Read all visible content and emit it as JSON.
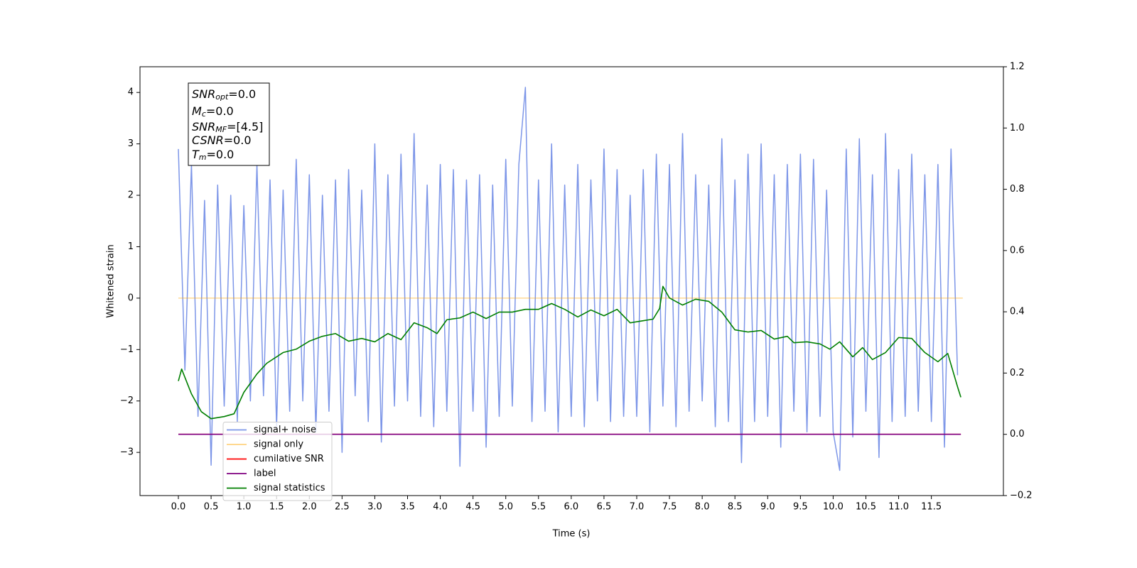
{
  "chart_data": {
    "type": "line",
    "xlabel": "Time (s)",
    "ylabel": "Whitened strain",
    "xlim": [
      -0.586,
      12.6
    ],
    "ylim": [
      -3.84,
      4.5
    ],
    "y2lim": [
      -0.2,
      1.2
    ],
    "xticks": [
      {
        "value": 0,
        "label": "0.0"
      },
      0.5,
      {
        "value": 1,
        "label": "1.0"
      },
      1.5,
      {
        "value": 2,
        "label": "2.0"
      },
      2.5,
      {
        "value": 3,
        "label": "3.0"
      },
      3.5,
      {
        "value": 4,
        "label": "4.0"
      },
      4.5,
      {
        "value": 5,
        "label": "5.0"
      },
      5.5,
      {
        "value": 6,
        "label": "6.0"
      },
      6.5,
      {
        "value": 7,
        "label": "7.0"
      },
      7.5,
      {
        "value": 8,
        "label": "8.0"
      },
      8.5,
      {
        "value": 9,
        "label": "9.0"
      },
      9.5,
      {
        "value": 10,
        "label": "10.0"
      },
      10.5,
      {
        "value": 11,
        "label": "11.0"
      },
      11.5
    ],
    "yticks": [
      {
        "value": -3,
        "label": "−3"
      },
      {
        "value": -2,
        "label": "−2"
      },
      {
        "value": -1,
        "label": "−1"
      },
      0,
      1,
      2,
      3,
      4
    ],
    "y2ticks": [
      {
        "value": -0.2,
        "label": "−0.2"
      },
      {
        "value": 0,
        "label": "0.0"
      },
      0.2,
      0.4,
      0.6,
      0.8,
      {
        "value": 1,
        "label": "1.0"
      },
      1.2
    ],
    "legend_loc": "lower left",
    "annotation_box": [
      {
        "symbol": "SNR",
        "subscript": "opt",
        "text": "=0.0"
      },
      {
        "symbol": "M",
        "subscript": "c",
        "text": "=0.0"
      },
      {
        "symbol": "SNR",
        "subscript": "MF",
        "text": "=[4.5]"
      },
      {
        "symbol": "CSNR",
        "text": "=0.0"
      },
      {
        "symbol": "T",
        "subscript": "m",
        "text": "=0.0"
      }
    ],
    "series": [
      {
        "name": "signal+ noise",
        "color": "#6f8be6",
        "x": [
          0,
          0.1,
          0.2,
          0.3,
          0.4,
          0.5,
          0.6,
          0.7,
          0.8,
          0.9,
          1,
          1.1,
          1.2,
          1.3,
          1.4,
          1.5,
          1.6,
          1.7,
          1.8,
          1.9,
          2,
          2.1,
          2.2,
          2.3,
          2.4,
          2.5,
          2.6,
          2.7,
          2.8,
          2.9,
          3,
          3.1,
          3.2,
          3.3,
          3.4,
          3.5,
          3.6,
          3.7,
          3.8,
          3.9,
          4,
          4.1,
          4.2,
          4.3,
          4.4,
          4.5,
          4.6,
          4.7,
          4.8,
          4.9,
          5,
          5.1,
          5.2,
          5.3,
          5.4,
          5.5,
          5.6,
          5.7,
          5.8,
          5.9,
          6,
          6.1,
          6.2,
          6.3,
          6.4,
          6.5,
          6.6,
          6.7,
          6.8,
          6.9,
          7,
          7.1,
          7.2,
          7.3,
          7.4,
          7.5,
          7.6,
          7.7,
          7.8,
          7.9,
          8,
          8.1,
          8.2,
          8.3,
          8.4,
          8.5,
          8.6,
          8.7,
          8.8,
          8.9,
          9,
          9.1,
          9.2,
          9.3,
          9.4,
          9.5,
          9.6,
          9.7,
          9.8,
          9.9,
          10,
          10.1,
          10.2,
          10.3,
          10.4,
          10.5,
          10.6,
          10.7,
          10.8,
          10.9,
          11,
          11.1,
          11.2,
          11.3,
          11.4,
          11.5,
          11.6,
          11.7,
          11.8,
          11.9
        ],
        "values": [
          2.9,
          -1.4,
          2.6,
          -2.3,
          1.9,
          -3.25,
          2.2,
          -2.1,
          2.0,
          -2.4,
          1.8,
          -2.0,
          2.6,
          -1.9,
          2.3,
          -2.5,
          2.1,
          -2.2,
          2.7,
          -2.0,
          2.4,
          -2.6,
          2.0,
          -2.2,
          2.3,
          -3.0,
          2.5,
          -1.9,
          2.1,
          -2.4,
          3.0,
          -2.8,
          2.4,
          -2.1,
          2.8,
          -2.0,
          3.2,
          -2.3,
          2.2,
          -2.5,
          2.6,
          -2.2,
          2.5,
          -3.27,
          2.3,
          -2.2,
          2.4,
          -2.9,
          2.2,
          -2.3,
          2.7,
          -2.1,
          2.6,
          4.1,
          -2.4,
          2.3,
          -2.2,
          3.0,
          -2.6,
          2.2,
          -2.3,
          2.6,
          -2.5,
          2.3,
          -2.0,
          2.9,
          -2.4,
          2.5,
          -2.3,
          2.0,
          -2.3,
          2.5,
          -2.6,
          2.8,
          -2.1,
          2.6,
          -2.5,
          3.2,
          -2.2,
          2.4,
          -2.0,
          2.2,
          -2.5,
          3.1,
          -2.4,
          2.3,
          -3.2,
          2.8,
          -2.4,
          3.0,
          -2.3,
          2.4,
          -2.9,
          2.6,
          -2.2,
          2.8,
          -2.6,
          2.7,
          -2.3,
          2.1,
          -2.6,
          -3.35,
          2.9,
          -2.7,
          3.1,
          -2.2,
          2.4,
          -3.1,
          3.2,
          -2.4,
          2.5,
          -2.3,
          2.8,
          -2.2,
          2.4,
          -2.4,
          2.6,
          -2.9,
          2.9,
          -1.5
        ]
      },
      {
        "name": "signal only",
        "color": "#ffa500",
        "x": [
          0,
          11.98
        ],
        "values": [
          0,
          0
        ]
      },
      {
        "name": "cumilative SNR",
        "color": "#ff0000",
        "axis": "y2",
        "x": [
          0,
          11.95
        ],
        "values": [
          0,
          0
        ]
      },
      {
        "name": "label",
        "color": "#800080",
        "axis": "y2",
        "x": [
          0,
          11.95
        ],
        "values": [
          0,
          0
        ]
      },
      {
        "name": "signal statistics",
        "color": "#007f00",
        "axis": "y2",
        "x": [
          0,
          0.05,
          0.2,
          0.35,
          0.5,
          0.7,
          0.85,
          1.0,
          1.2,
          1.35,
          1.6,
          1.8,
          2.0,
          2.2,
          2.4,
          2.6,
          2.8,
          3.0,
          3.2,
          3.4,
          3.6,
          3.8,
          3.95,
          4.1,
          4.3,
          4.5,
          4.7,
          4.9,
          5.1,
          5.3,
          5.5,
          5.7,
          5.9,
          6.1,
          6.3,
          6.5,
          6.7,
          6.9,
          7.1,
          7.25,
          7.35,
          7.4,
          7.5,
          7.7,
          7.9,
          8.1,
          8.3,
          8.5,
          8.7,
          8.9,
          9.1,
          9.3,
          9.4,
          9.6,
          9.8,
          9.95,
          10.1,
          10.3,
          10.45,
          10.6,
          10.8,
          11.0,
          11.2,
          11.4,
          11.6,
          11.75,
          11.9,
          11.95
        ],
        "values": [
          0.174,
          0.213,
          0.132,
          0.074,
          0.051,
          0.058,
          0.067,
          0.137,
          0.197,
          0.232,
          0.267,
          0.278,
          0.304,
          0.32,
          0.329,
          0.304,
          0.313,
          0.302,
          0.329,
          0.309,
          0.364,
          0.348,
          0.329,
          0.374,
          0.38,
          0.399,
          0.378,
          0.399,
          0.399,
          0.408,
          0.408,
          0.427,
          0.408,
          0.383,
          0.406,
          0.387,
          0.408,
          0.364,
          0.371,
          0.376,
          0.411,
          0.483,
          0.445,
          0.422,
          0.441,
          0.434,
          0.399,
          0.341,
          0.334,
          0.339,
          0.311,
          0.32,
          0.299,
          0.302,
          0.295,
          0.278,
          0.302,
          0.253,
          0.283,
          0.244,
          0.267,
          0.316,
          0.313,
          0.267,
          0.237,
          0.264,
          0.155,
          0.121
        ]
      }
    ]
  }
}
